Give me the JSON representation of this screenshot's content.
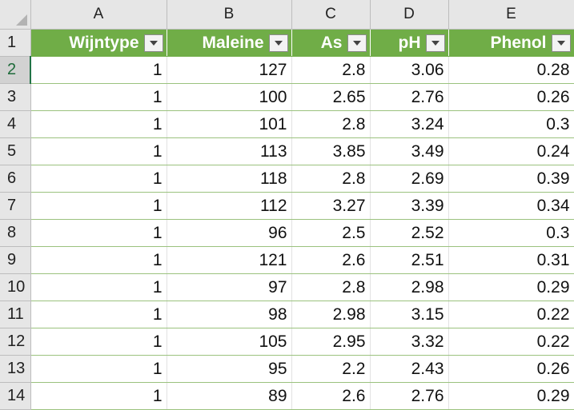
{
  "columns": [
    "A",
    "B",
    "C",
    "D",
    "E"
  ],
  "headers": [
    "Wijntype",
    "Maleine",
    "As",
    "pH",
    "Phenol"
  ],
  "header_row_number": "1",
  "colors": {
    "header_green": "#70ad47",
    "gridline_green": "#9bc27e",
    "selection_green": "#217346"
  },
  "rows": [
    {
      "n": "2",
      "cells": [
        "1",
        "127",
        "2.8",
        "3.06",
        "0.28"
      ]
    },
    {
      "n": "3",
      "cells": [
        "1",
        "100",
        "2.65",
        "2.76",
        "0.26"
      ]
    },
    {
      "n": "4",
      "cells": [
        "1",
        "101",
        "2.8",
        "3.24",
        "0.3"
      ]
    },
    {
      "n": "5",
      "cells": [
        "1",
        "113",
        "3.85",
        "3.49",
        "0.24"
      ]
    },
    {
      "n": "6",
      "cells": [
        "1",
        "118",
        "2.8",
        "2.69",
        "0.39"
      ]
    },
    {
      "n": "7",
      "cells": [
        "1",
        "112",
        "3.27",
        "3.39",
        "0.34"
      ]
    },
    {
      "n": "8",
      "cells": [
        "1",
        "96",
        "2.5",
        "2.52",
        "0.3"
      ]
    },
    {
      "n": "9",
      "cells": [
        "1",
        "121",
        "2.6",
        "2.51",
        "0.31"
      ]
    },
    {
      "n": "10",
      "cells": [
        "1",
        "97",
        "2.8",
        "2.98",
        "0.29"
      ]
    },
    {
      "n": "11",
      "cells": [
        "1",
        "98",
        "2.98",
        "3.15",
        "0.22"
      ]
    },
    {
      "n": "12",
      "cells": [
        "1",
        "105",
        "2.95",
        "3.32",
        "0.22"
      ]
    },
    {
      "n": "13",
      "cells": [
        "1",
        "95",
        "2.2",
        "2.43",
        "0.26"
      ]
    },
    {
      "n": "14",
      "cells": [
        "1",
        "89",
        "2.6",
        "2.76",
        "0.29"
      ]
    }
  ],
  "selected_row": "2"
}
